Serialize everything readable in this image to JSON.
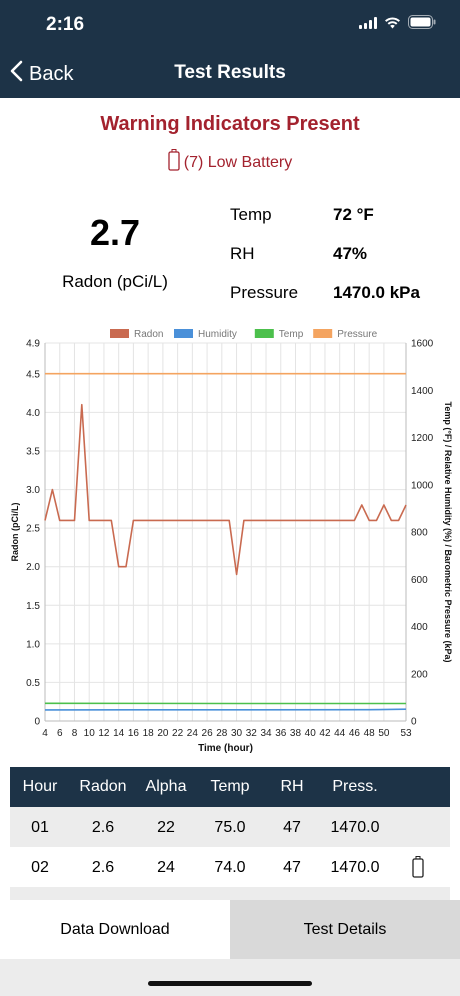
{
  "status_bar": {
    "time": "2:16"
  },
  "nav": {
    "back_label": "Back",
    "title": "Test Results"
  },
  "warning": {
    "title": "Warning Indicators Present",
    "item": "(7) Low Battery"
  },
  "summary": {
    "radon_value": "2.7",
    "radon_label": "Radon (pCi/L)",
    "temp_label": "Temp",
    "temp_value": "72 °F",
    "rh_label": "RH",
    "rh_value": "47%",
    "pressure_label": "Pressure",
    "pressure_value": "1470.0 kPa"
  },
  "chart_data": {
    "type": "line",
    "xlabel": "Time (hour)",
    "ylabel": "Radon (pCi/L)",
    "y2label": "Temp (°F) / Relative Humidity (%) / Barometric Pressure (kPa)",
    "xlim": [
      4,
      53
    ],
    "ylim": [
      0,
      4.9
    ],
    "y2lim": [
      0,
      1600
    ],
    "x_ticks": [
      "4",
      "6",
      "8",
      "10",
      "12",
      "14",
      "16",
      "18",
      "20",
      "22",
      "24",
      "26",
      "28",
      "30",
      "32",
      "34",
      "36",
      "38",
      "40",
      "42",
      "44",
      "46",
      "48",
      "50",
      "53"
    ],
    "y_ticks": [
      "0",
      "0.5",
      "1.0",
      "1.5",
      "2.0",
      "2.5",
      "3.0",
      "3.5",
      "4.0",
      "4.5",
      "4.9"
    ],
    "y2_ticks": [
      "0",
      "200",
      "400",
      "600",
      "800",
      "1000",
      "1200",
      "1400",
      "1600"
    ],
    "legend_position": "top",
    "grid": true,
    "series": [
      {
        "name": "Radon",
        "axis": "left",
        "color": "#c96a50",
        "x": [
          4,
          5,
          6,
          8,
          9,
          10,
          12,
          13,
          14,
          15,
          16,
          29,
          30,
          31,
          46,
          47,
          48,
          49,
          50,
          51,
          52,
          53
        ],
        "y": [
          2.6,
          3.0,
          2.6,
          2.6,
          4.1,
          2.6,
          2.6,
          2.6,
          2.0,
          2.0,
          2.6,
          2.6,
          1.9,
          2.6,
          2.6,
          2.8,
          2.6,
          2.6,
          2.8,
          2.6,
          2.6,
          2.8
        ]
      },
      {
        "name": "Humidity",
        "axis": "right",
        "color": "#4a90d9",
        "x": [
          4,
          48,
          53
        ],
        "y": [
          47,
          48,
          50
        ]
      },
      {
        "name": "Temp",
        "axis": "right",
        "color": "#4cc04c",
        "x": [
          4,
          30,
          53
        ],
        "y": [
          75,
          74,
          74
        ]
      },
      {
        "name": "Pressure",
        "axis": "right",
        "color": "#f4a460",
        "x": [
          4,
          53
        ],
        "y": [
          1470,
          1470
        ]
      }
    ]
  },
  "table": {
    "headers": [
      "Hour",
      "Radon",
      "Alpha",
      "Temp",
      "RH",
      "Press."
    ],
    "rows": [
      {
        "cells": [
          "01",
          "2.6",
          "22",
          "75.0",
          "47",
          "1470.0"
        ],
        "battery_icon": false
      },
      {
        "cells": [
          "02",
          "2.6",
          "24",
          "74.0",
          "47",
          "1470.0"
        ],
        "battery_icon": true
      }
    ]
  },
  "bottom": {
    "left_label": "Data Download",
    "right_label": "Test Details"
  },
  "colors": {
    "nav_bg": "#1d3347",
    "warning": "#a3222e"
  },
  "icons": [
    "back-chevron-icon",
    "low-battery-icon",
    "wifi-icon",
    "signal-icon",
    "battery-icon"
  ]
}
